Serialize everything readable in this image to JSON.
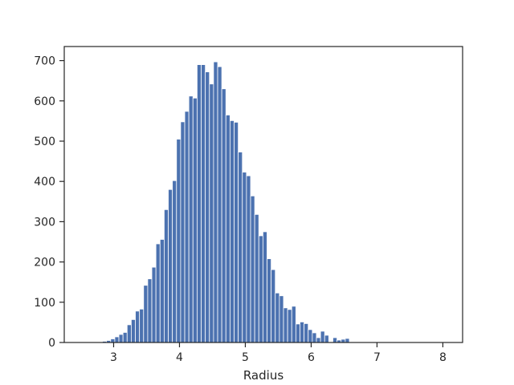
{
  "chart_data": {
    "type": "bar",
    "title": "",
    "xlabel": "Radius",
    "ylabel": "",
    "xlim": [
      2.25,
      8.3
    ],
    "ylim": [
      0,
      735
    ],
    "grid": false,
    "bar_color": "#4c72b0",
    "x_ticks": [
      3,
      4,
      5,
      6,
      7,
      8
    ],
    "y_ticks": [
      0,
      100,
      200,
      300,
      400,
      500,
      600,
      700
    ],
    "bin_start": 2.83,
    "bin_width": 0.0625,
    "values": [
      3,
      5,
      9,
      14,
      20,
      25,
      44,
      57,
      78,
      83,
      142,
      158,
      187,
      245,
      256,
      330,
      380,
      402,
      505,
      548,
      574,
      612,
      607,
      690,
      690,
      672,
      642,
      697,
      685,
      630,
      565,
      551,
      547,
      473,
      423,
      414,
      364,
      318,
      265,
      275,
      208,
      181,
      123,
      116,
      86,
      82,
      90,
      46,
      51,
      47,
      32,
      24,
      12,
      28,
      18,
      0,
      12,
      6,
      8,
      10
    ]
  }
}
